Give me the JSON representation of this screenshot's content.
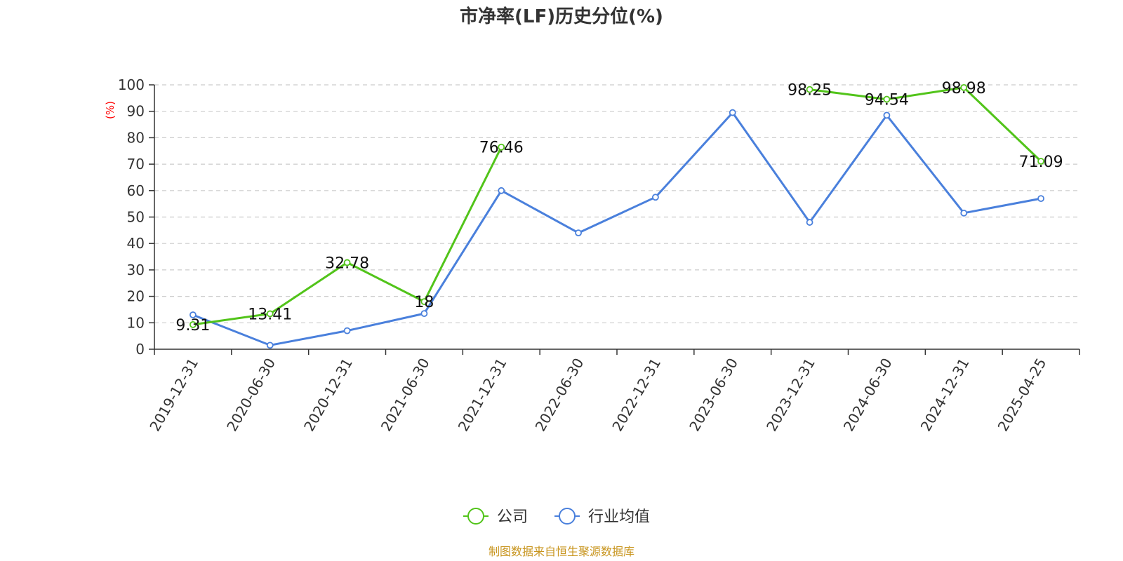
{
  "chart_data": {
    "type": "line",
    "title": "市净率(LF)历史分位(%)",
    "ylabel": "(%)",
    "ylim": [
      0,
      100
    ],
    "yticks": [
      0,
      10,
      20,
      30,
      40,
      50,
      60,
      70,
      80,
      90,
      100
    ],
    "grid": "horizontal dashed",
    "categories": [
      "2019-12-31",
      "2020-06-30",
      "2020-12-31",
      "2021-06-30",
      "2021-12-31",
      "2022-06-30",
      "2022-12-31",
      "2023-06-30",
      "2023-12-31",
      "2024-06-30",
      "2024-12-31",
      "2025-04-25"
    ],
    "series": [
      {
        "name": "公司",
        "color": "#52c41a",
        "values": [
          9.31,
          13.41,
          32.78,
          18,
          76.46,
          null,
          null,
          null,
          98.25,
          94.54,
          98.98,
          71.09
        ],
        "labels": [
          "9.31",
          "13.41",
          "32.78",
          "18",
          "76.46",
          null,
          null,
          null,
          "98.25",
          "94.54",
          "98.98",
          "71.09"
        ]
      },
      {
        "name": "行业均值",
        "color": "#4a80dc",
        "values": [
          13,
          1.5,
          7,
          13.5,
          60,
          44,
          57.5,
          89.5,
          48,
          88.5,
          51.5,
          57
        ]
      }
    ],
    "legend_position": "bottom-center",
    "source": "制图数据来自恒生聚源数据库",
    "colors": {
      "ylabel": "#ff0000",
      "source": "#c8951e",
      "axis": "#333333",
      "grid": "#cccccc"
    }
  }
}
